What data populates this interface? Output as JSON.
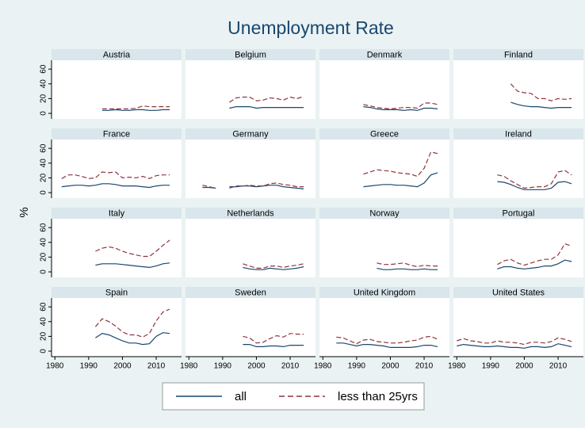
{
  "chart_data": {
    "type": "line",
    "title": "Unemployment Rate",
    "y_label": "%",
    "x": [
      1980,
      1982,
      1984,
      1986,
      1988,
      1990,
      1992,
      1994,
      1996,
      1998,
      2000,
      2002,
      2004,
      2006,
      2008,
      2010,
      2012,
      2014
    ],
    "xlim": [
      1979,
      2017.5
    ],
    "xticks": [
      1980,
      1990,
      2000,
      2010
    ],
    "ylim": [
      -7.5,
      72
    ],
    "yticks": [
      0,
      20,
      40,
      60
    ],
    "series": [
      {
        "name": "all",
        "color": "#1a476f",
        "dashed": false
      },
      {
        "name": "less than 25yrs",
        "color": "#90353b",
        "dashed": true
      }
    ],
    "panels": [
      {
        "name": "Austria",
        "values": [
          [
            null,
            null,
            null,
            null,
            null,
            null,
            null,
            4,
            4,
            5,
            4,
            4,
            5,
            5,
            4,
            4,
            5,
            5
          ],
          [
            null,
            null,
            null,
            null,
            null,
            null,
            null,
            6,
            6,
            6,
            6,
            6,
            7,
            10,
            9,
            9,
            9,
            9
          ]
        ]
      },
      {
        "name": "Belgium",
        "values": [
          [
            null,
            null,
            null,
            null,
            null,
            null,
            7,
            9,
            9,
            9,
            7,
            8,
            8,
            8,
            8,
            8,
            8,
            8
          ],
          [
            null,
            null,
            null,
            null,
            null,
            null,
            15,
            21,
            22,
            22,
            17,
            18,
            21,
            20,
            18,
            22,
            20,
            23
          ]
        ]
      },
      {
        "name": "Denmark",
        "values": [
          [
            null,
            null,
            null,
            null,
            null,
            null,
            9,
            8,
            6,
            5,
            5,
            5,
            4,
            5,
            4,
            7,
            7,
            6
          ],
          [
            null,
            null,
            null,
            null,
            null,
            null,
            12,
            10,
            8,
            7,
            6,
            7,
            8,
            8,
            7,
            14,
            14,
            12
          ]
        ]
      },
      {
        "name": "Finland",
        "values": [
          [
            null,
            null,
            null,
            null,
            null,
            null,
            null,
            null,
            15,
            12,
            10,
            9,
            9,
            8,
            7,
            8,
            8,
            8
          ],
          [
            null,
            null,
            null,
            null,
            null,
            null,
            null,
            null,
            40,
            30,
            28,
            27,
            20,
            20,
            17,
            20,
            19,
            20
          ]
        ]
      },
      {
        "name": "France",
        "values": [
          [
            null,
            8,
            9,
            10,
            10,
            9,
            10,
            12,
            12,
            11,
            9,
            9,
            9,
            8,
            7,
            9,
            10,
            10
          ],
          [
            null,
            19,
            24,
            24,
            22,
            19,
            20,
            28,
            27,
            28,
            20,
            21,
            20,
            22,
            19,
            23,
            24,
            24
          ]
        ]
      },
      {
        "name": "Germany",
        "values": [
          [
            null,
            null,
            7,
            7,
            6,
            null,
            8,
            8,
            9,
            9,
            8,
            9,
            10,
            10,
            8,
            7,
            6,
            5
          ],
          [
            null,
            null,
            10,
            8,
            6,
            null,
            6,
            9,
            9,
            10,
            9,
            9,
            12,
            13,
            11,
            10,
            8,
            8
          ]
        ]
      },
      {
        "name": "Greece",
        "values": [
          [
            null,
            null,
            null,
            null,
            null,
            null,
            8,
            9,
            10,
            11,
            11,
            10,
            10,
            9,
            8,
            13,
            24,
            27
          ],
          [
            null,
            null,
            null,
            null,
            null,
            null,
            25,
            28,
            31,
            30,
            29,
            27,
            26,
            25,
            22,
            33,
            55,
            53
          ]
        ]
      },
      {
        "name": "Ireland",
        "values": [
          [
            null,
            null,
            null,
            null,
            null,
            null,
            15,
            14,
            11,
            7,
            4,
            4,
            4,
            4,
            6,
            14,
            15,
            12
          ],
          [
            null,
            null,
            null,
            null,
            null,
            null,
            24,
            22,
            16,
            11,
            6,
            7,
            8,
            8,
            12,
            28,
            30,
            24
          ]
        ]
      },
      {
        "name": "Italy",
        "values": [
          [
            null,
            null,
            null,
            null,
            null,
            null,
            9,
            11,
            11,
            11,
            10,
            9,
            8,
            7,
            6,
            8,
            11,
            12
          ],
          [
            null,
            null,
            null,
            null,
            null,
            null,
            28,
            32,
            34,
            32,
            28,
            25,
            23,
            21,
            21,
            28,
            36,
            43
          ]
        ]
      },
      {
        "name": "Netherlands",
        "values": [
          [
            null,
            null,
            null,
            null,
            null,
            null,
            null,
            null,
            6,
            4,
            3,
            3,
            5,
            4,
            3,
            4,
            5,
            7
          ],
          [
            null,
            null,
            null,
            null,
            null,
            null,
            null,
            null,
            11,
            8,
            5,
            5,
            8,
            8,
            6,
            8,
            9,
            11
          ]
        ]
      },
      {
        "name": "Norway",
        "values": [
          [
            null,
            null,
            null,
            null,
            null,
            null,
            null,
            null,
            5,
            3,
            3,
            4,
            4,
            3,
            3,
            4,
            3,
            3
          ],
          [
            null,
            null,
            null,
            null,
            null,
            null,
            null,
            null,
            12,
            10,
            10,
            11,
            12,
            9,
            7,
            9,
            8,
            8
          ]
        ]
      },
      {
        "name": "Portugal",
        "values": [
          [
            null,
            null,
            null,
            null,
            null,
            null,
            4,
            7,
            7,
            5,
            4,
            5,
            6,
            8,
            8,
            11,
            16,
            14
          ],
          [
            null,
            null,
            null,
            null,
            null,
            null,
            10,
            15,
            17,
            12,
            9,
            12,
            15,
            17,
            17,
            23,
            38,
            35
          ]
        ]
      },
      {
        "name": "Spain",
        "values": [
          [
            null,
            null,
            null,
            null,
            null,
            null,
            18,
            24,
            22,
            18,
            14,
            11,
            11,
            9,
            10,
            20,
            25,
            24
          ],
          [
            null,
            null,
            null,
            null,
            null,
            null,
            33,
            44,
            40,
            34,
            26,
            22,
            22,
            19,
            24,
            41,
            53,
            57
          ]
        ]
      },
      {
        "name": "Sweden",
        "values": [
          [
            null,
            null,
            null,
            null,
            null,
            null,
            null,
            null,
            9,
            9,
            6,
            6,
            7,
            7,
            6,
            8,
            8,
            8
          ],
          [
            null,
            null,
            null,
            null,
            null,
            null,
            null,
            null,
            20,
            18,
            11,
            12,
            17,
            21,
            19,
            24,
            23,
            23
          ]
        ]
      },
      {
        "name": "United Kingdom",
        "values": [
          [
            null,
            null,
            11,
            11,
            9,
            7,
            9,
            9,
            8,
            7,
            5,
            5,
            5,
            5,
            6,
            8,
            8,
            6
          ],
          [
            null,
            null,
            19,
            18,
            14,
            10,
            15,
            16,
            13,
            12,
            11,
            11,
            12,
            14,
            15,
            19,
            20,
            16
          ]
        ]
      },
      {
        "name": "United States",
        "values": [
          [
            7,
            9,
            8,
            7,
            6,
            6,
            7,
            6,
            5,
            5,
            4,
            6,
            6,
            5,
            6,
            10,
            8,
            6
          ],
          [
            14,
            17,
            14,
            13,
            11,
            11,
            14,
            12,
            12,
            11,
            9,
            12,
            12,
            11,
            13,
            18,
            16,
            13
          ]
        ]
      }
    ]
  }
}
